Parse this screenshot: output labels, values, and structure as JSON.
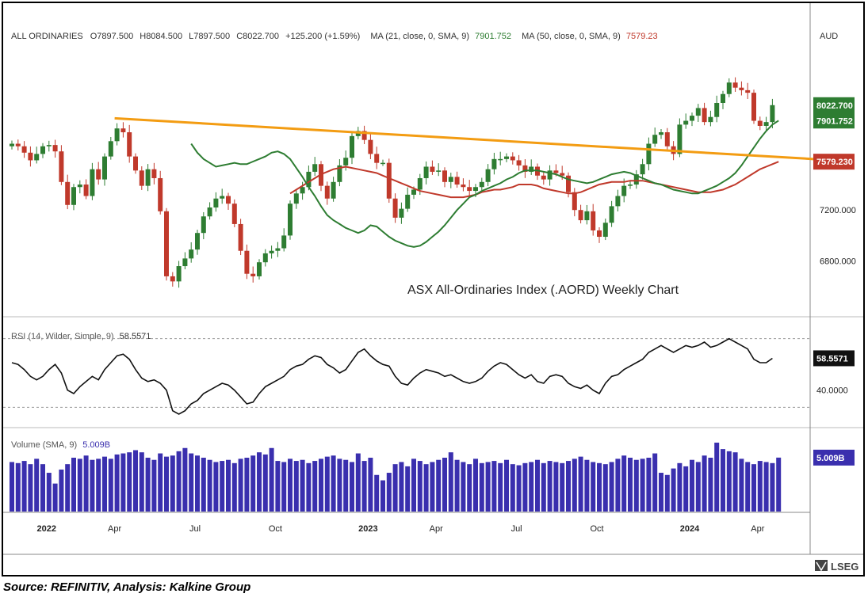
{
  "chart_data": {
    "type": "candlestick",
    "currency": "AUD",
    "ohlc_header": {
      "symbol": "ALL ORDINARIES",
      "open": "O7897.500",
      "high": "H8084.500",
      "low": "L7897.500",
      "close": "C8022.700",
      "change": "+125.200 (+1.59%)"
    },
    "ma_legend": [
      {
        "label": "MA (21, close, 0, SMA, 9)",
        "value": "7901.752",
        "color": "#2e7d32"
      },
      {
        "label": "MA (50, close, 0, SMA, 9)",
        "value": "7579.23",
        "color": "#c0392b"
      }
    ],
    "annotation": "ASX All-Ordinaries Index (.AORD) Weekly Chart",
    "price_axis": {
      "ticks": [
        "6800.000",
        "7200.000"
      ],
      "tick_values": [
        6800,
        7200
      ],
      "range": [
        6400,
        8450
      ]
    },
    "price_tags": [
      {
        "text": "8022.700",
        "value": 8022.7,
        "bg": "#2e7d32"
      },
      {
        "text": "7901.752",
        "value": 7901.752,
        "bg": "#2e7d32"
      },
      {
        "text": "7579.230",
        "value": 7579.23,
        "bg": "#c0392b"
      }
    ],
    "time_axis": [
      "2022",
      "Apr",
      "Jul",
      "Oct",
      "2023",
      "Apr",
      "Jul",
      "Oct",
      "2024",
      "Apr"
    ],
    "time_axis_bold": [
      true,
      false,
      false,
      false,
      true,
      false,
      false,
      false,
      true,
      false
    ],
    "time_axis_week": [
      6,
      17,
      30,
      43,
      58,
      69,
      82,
      95,
      110,
      121
    ],
    "trendline": {
      "from_week": 17,
      "from_value": 7920,
      "to_week": 130,
      "to_value": 7600,
      "color": "#f39c12"
    },
    "weekly_close": [
      7720,
      7700,
      7650,
      7590,
      7640,
      7700,
      7710,
      7660,
      7420,
      7240,
      7380,
      7400,
      7310,
      7520,
      7440,
      7620,
      7740,
      7840,
      7810,
      7620,
      7510,
      7390,
      7520,
      7450,
      7190,
      6680,
      6640,
      6760,
      6820,
      6890,
      7020,
      7150,
      7220,
      7290,
      7310,
      7250,
      7090,
      6880,
      6700,
      6680,
      6790,
      6860,
      6880,
      6900,
      7000,
      7250,
      7330,
      7380,
      7500,
      7560,
      7390,
      7290,
      7420,
      7550,
      7610,
      7780,
      7820,
      7750,
      7640,
      7570,
      7570,
      7290,
      7140,
      7210,
      7320,
      7360,
      7450,
      7540,
      7500,
      7510,
      7420,
      7460,
      7400,
      7380,
      7350,
      7380,
      7420,
      7520,
      7600,
      7600,
      7620,
      7590,
      7550,
      7500,
      7540,
      7470,
      7440,
      7510,
      7490,
      7470,
      7340,
      7200,
      7120,
      7190,
      7040,
      6990,
      7100,
      7230,
      7310,
      7390,
      7400,
      7480,
      7560,
      7720,
      7790,
      7810,
      7700,
      7640,
      7870,
      7900,
      7940,
      8000,
      7890,
      7930,
      8040,
      8110,
      8200,
      8160,
      8140,
      8120,
      7900,
      7860,
      7890,
      8022.7
    ],
    "ma21": [
      7720,
      7650,
      7600,
      7570,
      7540,
      7550,
      7560,
      7570,
      7560,
      7560,
      7580,
      7600,
      7620,
      7650,
      7660,
      7640,
      7600,
      7530,
      7460,
      7380,
      7310,
      7230,
      7160,
      7120,
      7090,
      7060,
      7040,
      7020,
      7040,
      7080,
      7070,
      7030,
      6990,
      6960,
      6940,
      6920,
      6910,
      6920,
      6950,
      6990,
      7030,
      7080,
      7140,
      7200,
      7250,
      7300,
      7320,
      7350,
      7370,
      7390,
      7410,
      7440,
      7460,
      7490,
      7510,
      7510,
      7510,
      7500,
      7490,
      7480,
      7460,
      7440,
      7430,
      7420,
      7410,
      7420,
      7440,
      7460,
      7480,
      7490,
      7500,
      7490,
      7470,
      7450,
      7430,
      7410,
      7400,
      7380,
      7360,
      7350,
      7340,
      7330,
      7330,
      7350,
      7370,
      7390,
      7420,
      7450,
      7490,
      7550,
      7620,
      7690,
      7760,
      7820,
      7870,
      7901.752
    ],
    "ma21_start_week": 29,
    "ma50": [
      7330,
      7360,
      7390,
      7420,
      7450,
      7480,
      7500,
      7520,
      7530,
      7540,
      7530,
      7520,
      7510,
      7500,
      7490,
      7470,
      7450,
      7430,
      7410,
      7390,
      7370,
      7350,
      7340,
      7330,
      7320,
      7310,
      7300,
      7300,
      7300,
      7310,
      7320,
      7340,
      7350,
      7360,
      7360,
      7370,
      7380,
      7400,
      7400,
      7400,
      7390,
      7370,
      7360,
      7350,
      7340,
      7330,
      7330,
      7340,
      7360,
      7380,
      7400,
      7410,
      7420,
      7420,
      7420,
      7430,
      7430,
      7430,
      7420,
      7410,
      7400,
      7390,
      7380,
      7370,
      7360,
      7350,
      7340,
      7340,
      7340,
      7350,
      7360,
      7380,
      7400,
      7430,
      7460,
      7490,
      7520,
      7540,
      7560,
      7579.23
    ],
    "ma50_start_week": 45,
    "rsi": {
      "label": "RSI (14, Wilder, Simple, 9)",
      "value": "58.5571",
      "tick": "40.0000",
      "range": [
        20,
        80
      ],
      "overbought": 70,
      "oversold": 30,
      "values": [
        56,
        55,
        52,
        48,
        46,
        48,
        52,
        55,
        50,
        40,
        38,
        42,
        45,
        48,
        46,
        52,
        56,
        60,
        61,
        58,
        52,
        47,
        45,
        46,
        44,
        40,
        28,
        26,
        28,
        32,
        34,
        38,
        40,
        42,
        44,
        43,
        40,
        36,
        32,
        33,
        38,
        42,
        44,
        46,
        48,
        52,
        54,
        55,
        58,
        60,
        59,
        55,
        53,
        50,
        52,
        57,
        62,
        64,
        60,
        57,
        55,
        54,
        48,
        44,
        43,
        47,
        50,
        52,
        51,
        50,
        48,
        49,
        47,
        45,
        44,
        45,
        47,
        51,
        54,
        56,
        55,
        52,
        49,
        47,
        49,
        45,
        44,
        48,
        49,
        48,
        44,
        42,
        41,
        43,
        40,
        38,
        44,
        48,
        49,
        52,
        54,
        56,
        58,
        62,
        64,
        66,
        64,
        62,
        64,
        66,
        65,
        66,
        68,
        65,
        66,
        68,
        70,
        68,
        66,
        64,
        58,
        56,
        56,
        58.5571
      ]
    },
    "volume": {
      "label": "Volume (SMA, 9)",
      "value": "5.009B",
      "values": [
        4.6,
        4.5,
        4.7,
        4.4,
        4.9,
        4.4,
        3.6,
        2.6,
        3.9,
        4.4,
        5.0,
        4.9,
        5.2,
        4.8,
        4.9,
        5.1,
        4.9,
        5.3,
        5.4,
        5.5,
        5.7,
        5.5,
        5.0,
        4.8,
        5.4,
        5.1,
        5.2,
        5.6,
        5.9,
        5.4,
        5.2,
        5.0,
        4.8,
        4.6,
        4.7,
        4.8,
        4.5,
        4.9,
        5.0,
        5.2,
        5.5,
        5.3,
        5.9,
        4.7,
        4.6,
        4.9,
        4.7,
        4.8,
        4.5,
        4.7,
        4.9,
        5.1,
        5.2,
        4.9,
        4.8,
        4.6,
        5.4,
        4.7,
        5.0,
        3.4,
        2.9,
        3.6,
        4.4,
        4.6,
        4.2,
        4.9,
        4.7,
        4.4,
        4.6,
        4.8,
        5.0,
        5.5,
        4.8,
        4.6,
        4.4,
        4.9,
        4.5,
        4.6,
        4.7,
        4.5,
        4.8,
        4.4,
        4.3,
        4.5,
        4.6,
        4.8,
        4.5,
        4.7,
        4.6,
        4.5,
        4.7,
        4.9,
        5.1,
        4.8,
        4.6,
        4.5,
        4.4,
        4.6,
        4.9,
        5.2,
        5.0,
        4.8,
        4.9,
        5.0,
        5.4,
        3.6,
        3.4,
        4.0,
        4.5,
        4.2,
        4.8,
        4.6,
        5.2,
        5.0,
        6.4,
        5.8,
        5.6,
        5.5,
        4.9,
        4.6,
        4.4,
        4.7,
        4.6,
        4.5,
        5.009
      ],
      "range": [
        0,
        7.5
      ]
    }
  },
  "logo": {
    "text": "LSEG"
  },
  "source_text": "Source: REFINITIV, Analysis: Kalkine Group",
  "colors": {
    "up": "#2e7d32",
    "down": "#c0392b",
    "ma21": "#2e7d32",
    "ma50": "#c0392b",
    "volume": "#3a2fae",
    "trend": "#f39c12"
  }
}
